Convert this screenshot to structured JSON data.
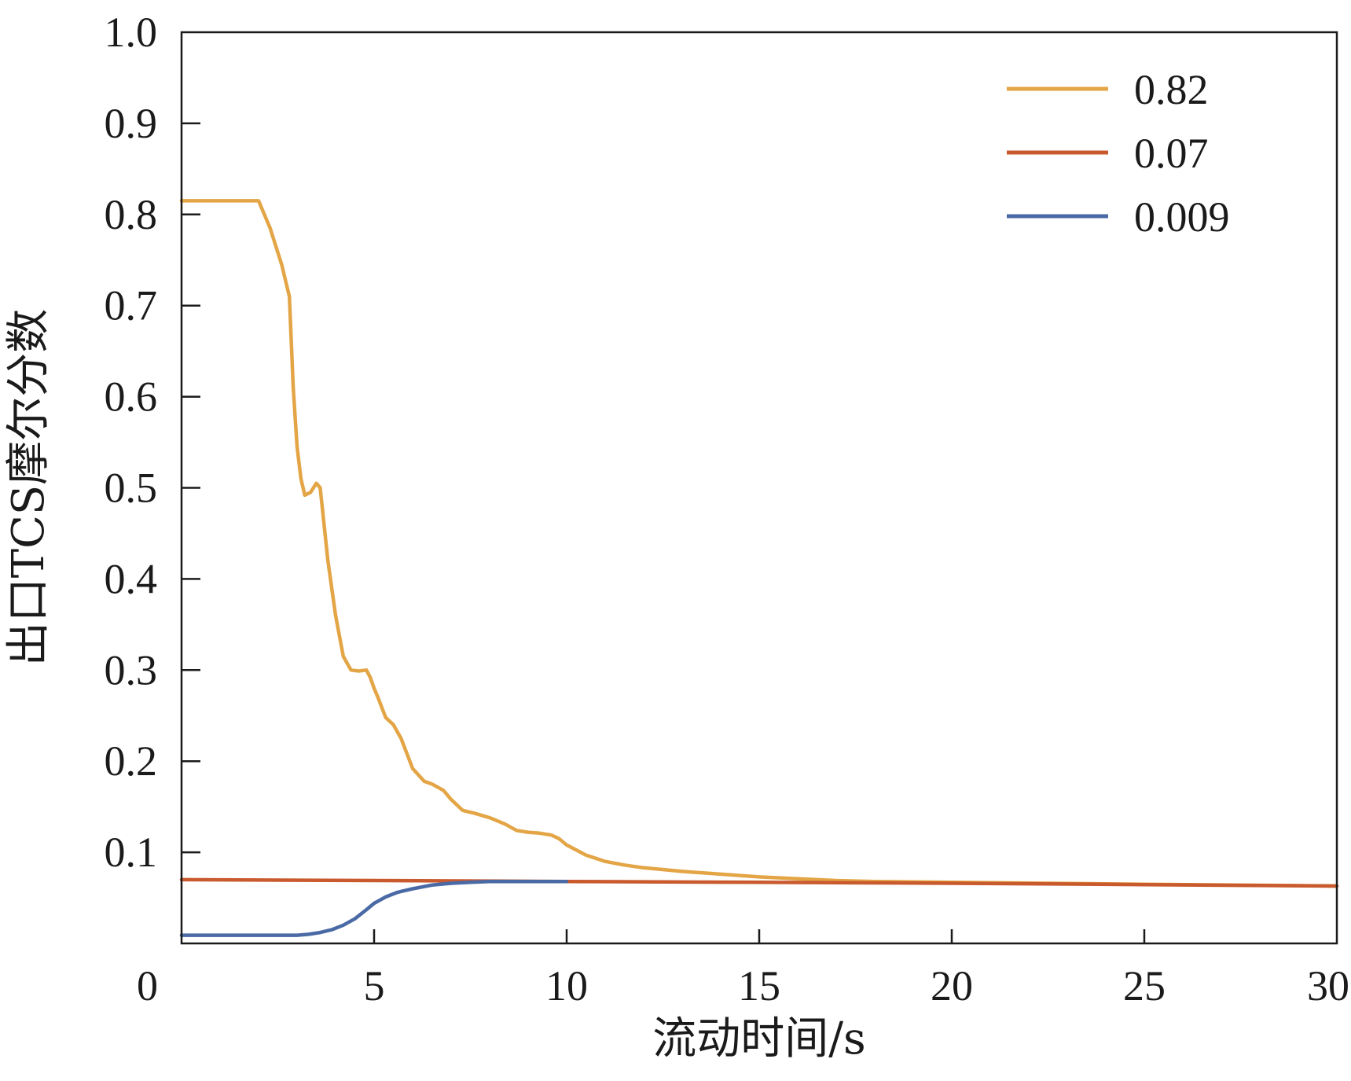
{
  "chart_data": {
    "type": "line",
    "title": "",
    "xlabel": "流动时间/s",
    "ylabel": "出口TCS摩尔分数",
    "xlim": [
      0,
      30
    ],
    "ylim": [
      0,
      1.0
    ],
    "x_ticks": [
      0,
      5,
      10,
      15,
      20,
      25,
      30
    ],
    "x_tick_labels": [
      "0",
      "5",
      "10",
      "15",
      "20",
      "25",
      "30"
    ],
    "y_ticks": [
      0.1,
      0.2,
      0.3,
      0.4,
      0.5,
      0.6,
      0.7,
      0.8,
      0.9,
      1.0
    ],
    "y_tick_labels": [
      "0.1",
      "0.2",
      "0.3",
      "0.4",
      "0.5",
      "0.6",
      "0.7",
      "0.8",
      "0.9",
      "1.0"
    ],
    "grid": false,
    "legend_position": "top-right",
    "series": [
      {
        "name": "0.82",
        "color": "#E3A545",
        "x": [
          0,
          1,
          1.8,
          2.0,
          2.3,
          2.6,
          2.8,
          2.9,
          3.0,
          3.1,
          3.2,
          3.35,
          3.5,
          3.6,
          3.7,
          3.8,
          4.0,
          4.2,
          4.4,
          4.6,
          4.8,
          4.9,
          5.0,
          5.1,
          5.3,
          5.5,
          5.7,
          6.0,
          6.3,
          6.5,
          6.8,
          7.0,
          7.3,
          7.6,
          8.0,
          8.4,
          8.7,
          9.0,
          9.3,
          9.6,
          9.8,
          10.0,
          10.5,
          11.0,
          11.5,
          12.0,
          13.0,
          14.0,
          15.0,
          16.0,
          17.0,
          18.0,
          20.0,
          25.0,
          30.0
        ],
        "values": [
          0.815,
          0.815,
          0.815,
          0.815,
          0.785,
          0.745,
          0.71,
          0.61,
          0.545,
          0.51,
          0.492,
          0.495,
          0.505,
          0.5,
          0.46,
          0.42,
          0.36,
          0.315,
          0.3,
          0.299,
          0.3,
          0.292,
          0.28,
          0.27,
          0.248,
          0.24,
          0.225,
          0.192,
          0.178,
          0.175,
          0.168,
          0.158,
          0.146,
          0.143,
          0.138,
          0.131,
          0.124,
          0.122,
          0.121,
          0.119,
          0.115,
          0.108,
          0.097,
          0.09,
          0.086,
          0.083,
          0.079,
          0.076,
          0.073,
          0.071,
          0.069,
          0.068,
          0.067,
          0.065,
          0.063
        ]
      },
      {
        "name": "0.07",
        "color": "#C95A2E",
        "x": [
          0,
          5,
          10,
          15,
          20,
          25,
          30
        ],
        "values": [
          0.07,
          0.069,
          0.068,
          0.067,
          0.066,
          0.0645,
          0.063
        ]
      },
      {
        "name": "0.009",
        "color": "#4A6AA5",
        "x": [
          0,
          2.0,
          3.0,
          3.3,
          3.6,
          3.9,
          4.2,
          4.5,
          4.8,
          5.0,
          5.3,
          5.6,
          6.0,
          6.5,
          7.0,
          7.5,
          8.0,
          9.0,
          10.0
        ],
        "values": [
          0.009,
          0.009,
          0.009,
          0.01,
          0.012,
          0.015,
          0.02,
          0.027,
          0.037,
          0.044,
          0.051,
          0.056,
          0.06,
          0.064,
          0.066,
          0.067,
          0.068,
          0.068,
          0.068
        ]
      }
    ]
  }
}
